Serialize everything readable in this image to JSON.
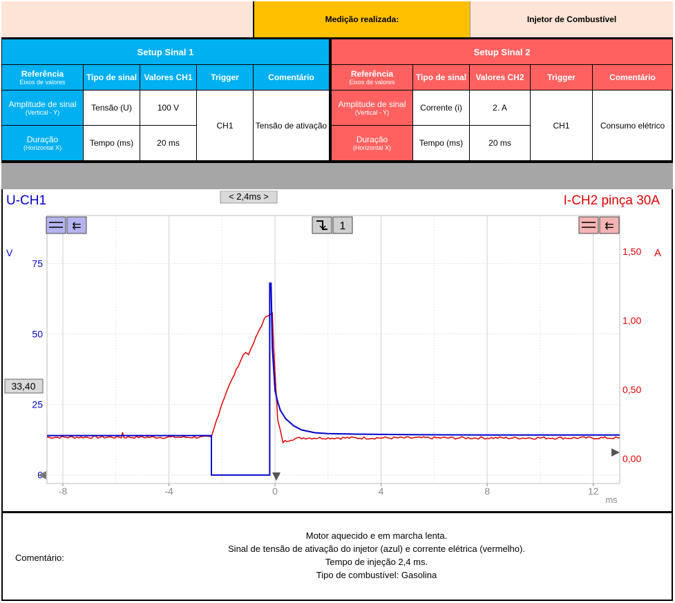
{
  "header": {
    "label": "Medição realizada:",
    "value": "Injetor de Combustível"
  },
  "setup1": {
    "title": "Setup Sinal 1",
    "col_ref": "Referência",
    "col_ref_sub": "Eixos de valores",
    "col_tipo": "Tipo de sinal",
    "col_valores": "Valores CH1",
    "col_trigger": "Trigger",
    "col_comentario": "Comentário",
    "row1_label": "Amplitude de sinal",
    "row1_sub": "(Vertical - Y)",
    "row1_tipo": "Tensão (U)",
    "row1_valor": "100 V",
    "row2_label": "Duração",
    "row2_sub": "(Horizontal X)",
    "row2_tipo": "Tempo (ms)",
    "row2_valor": "20 ms",
    "trigger": "CH1",
    "comentario": "Tensão de ativação"
  },
  "setup2": {
    "title": "Setup Sinal 2",
    "col_ref": "Referência",
    "col_ref_sub": "Eixos de valores",
    "col_tipo": "Tipo de sinal",
    "col_valores": "Valores CH2",
    "col_trigger": "Trigger",
    "col_comentario": "Comentário",
    "row1_label": "Amplitude de sinal",
    "row1_sub": "(Vertical - Y)",
    "row1_tipo": "Corrente (i)",
    "row1_valor": "2. A",
    "row2_label": "Duração",
    "row2_sub": "(Horizontal X)",
    "row2_tipo": "Tempo (ms)",
    "row2_valor": "20 ms",
    "trigger": "CH1",
    "comentario": "Consumo elétrico"
  },
  "scope": {
    "ch1_label": "U-CH1",
    "ch2_label": "I-CH2 pinça 30A",
    "ruler_label": "< 2,4ms >",
    "trigger_num": "1",
    "cursor_value": "33,40",
    "ch1_unit": "V",
    "ch2_unit": "A",
    "x_unit": "ms",
    "colors": {
      "ch1": "#0000cc",
      "ch2": "#dd0000",
      "grid": "#d8d8d8"
    }
  },
  "chart_data": {
    "type": "line",
    "title": "",
    "xlabel": "ms",
    "ylabel": "V",
    "xlim": [
      -8.6,
      13.0
    ],
    "ylim": [
      -3,
      92
    ],
    "y2lim": [
      -0.18,
      1.76
    ],
    "x_ticks": [
      -8,
      -4,
      0,
      4,
      8,
      12
    ],
    "y_ticks": [
      0,
      25,
      50,
      75
    ],
    "y2_ticks": [
      0.0,
      0.5,
      1.0,
      1.5
    ],
    "y_tick_labels": [
      "0",
      "25",
      "50",
      "75"
    ],
    "y2_tick_labels": [
      "0,00",
      "0,50",
      "1,00",
      "1,50"
    ],
    "x_tick_labels": [
      "-8",
      "-4",
      "0",
      "4",
      "8",
      "12"
    ],
    "series": [
      {
        "name": "U-CH1",
        "axis": "left",
        "x": [
          -8.6,
          -2.4,
          -2.4,
          -0.2,
          -0.2,
          -0.15,
          -0.1,
          0.0,
          0.1,
          0.2,
          0.4,
          0.7,
          1.0,
          1.5,
          2.0,
          3.0,
          5.0,
          8.0,
          13.0
        ],
        "y": [
          14.0,
          14.0,
          0.0,
          0.0,
          68.0,
          68.0,
          45.0,
          30.0,
          26.0,
          23.0,
          20.0,
          17.5,
          16.0,
          15.0,
          14.7,
          14.5,
          14.3,
          14.2,
          14.2
        ]
      },
      {
        "name": "I-CH2 pinça 30A",
        "axis": "right",
        "x": [
          -8.6,
          -5.8,
          -5.75,
          -5.7,
          -2.4,
          -2.2,
          -2.0,
          -1.8,
          -1.6,
          -1.4,
          -1.2,
          -1.1,
          -1.0,
          -0.9,
          -0.8,
          -0.6,
          -0.4,
          -0.2,
          -0.1,
          -0.05,
          0.1,
          0.3,
          0.6,
          1.0,
          2.0,
          4.0,
          8.0,
          13.0
        ],
        "y": [
          0.155,
          0.155,
          0.19,
          0.155,
          0.155,
          0.28,
          0.4,
          0.5,
          0.58,
          0.67,
          0.75,
          0.77,
          0.76,
          0.79,
          0.84,
          0.93,
          1.01,
          1.05,
          1.06,
          0.8,
          0.28,
          0.12,
          0.14,
          0.15,
          0.15,
          0.15,
          0.15,
          0.15
        ]
      }
    ]
  },
  "comment": {
    "label": "Comentário:",
    "lines": [
      "Motor aquecido e em marcha lenta.",
      "Sinal de tensão de ativação do injetor (azul) e corrente elétrica (vermelho).",
      "Tempo de injeção 2,4 ms.",
      "Tipo de combustível: Gasolina"
    ]
  }
}
